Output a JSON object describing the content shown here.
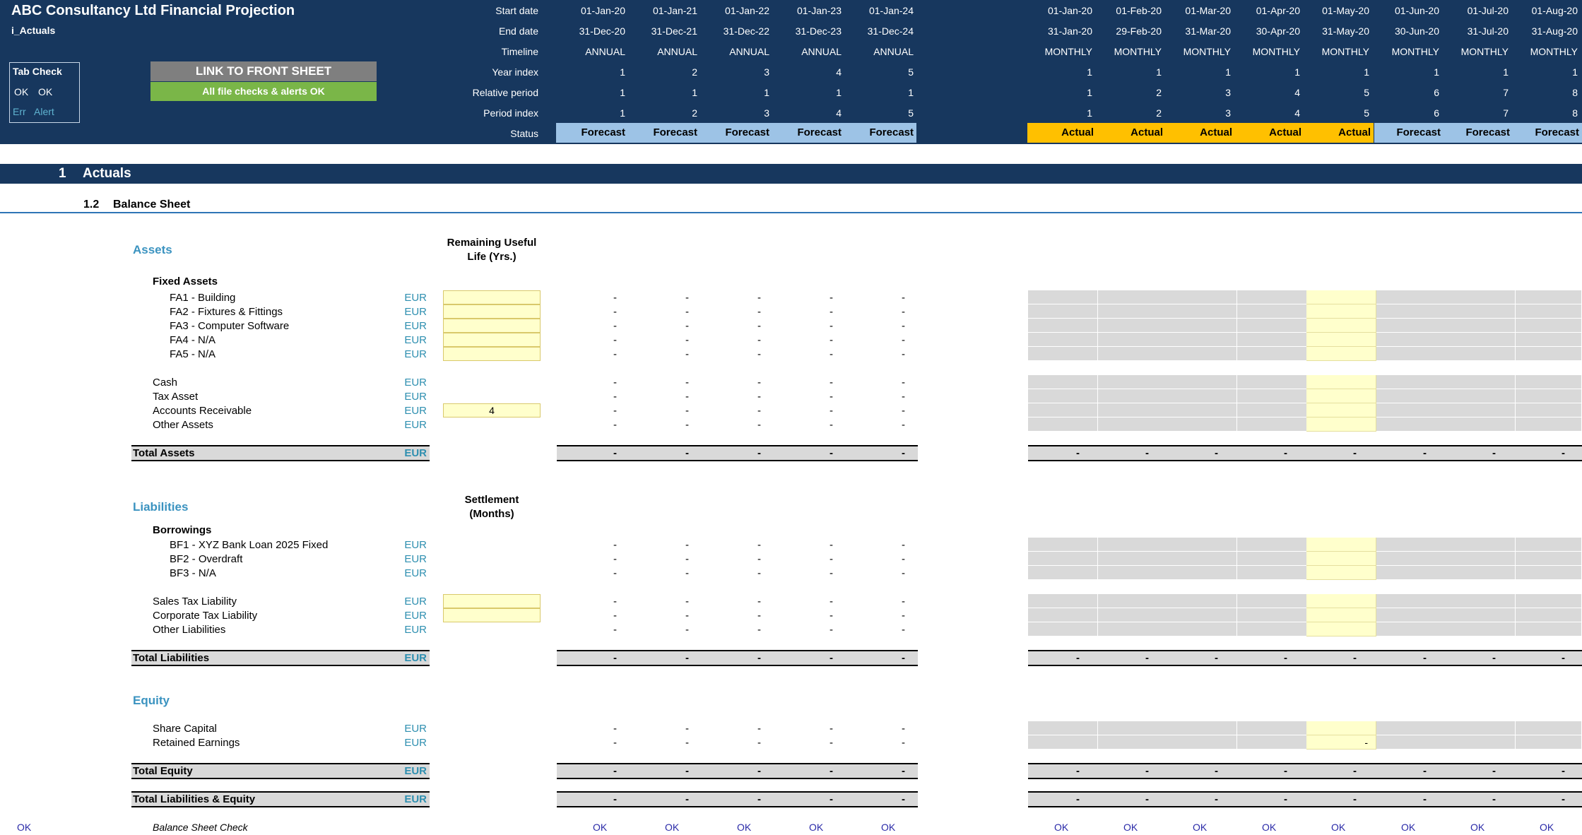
{
  "header": {
    "title": "ABC Consultancy Ltd Financial Projection",
    "sheet": "i_Actuals",
    "row_labels": [
      "Start date",
      "End date",
      "Timeline",
      "Year index",
      "Relative period",
      "Period index",
      "Status"
    ],
    "annual": {
      "start": [
        "01-Jan-20",
        "01-Jan-21",
        "01-Jan-22",
        "01-Jan-23",
        "01-Jan-24"
      ],
      "end": [
        "31-Dec-20",
        "31-Dec-21",
        "31-Dec-22",
        "31-Dec-23",
        "31-Dec-24"
      ],
      "timeline": [
        "ANNUAL",
        "ANNUAL",
        "ANNUAL",
        "ANNUAL",
        "ANNUAL"
      ],
      "year_index": [
        "1",
        "2",
        "3",
        "4",
        "5"
      ],
      "relative": [
        "1",
        "1",
        "1",
        "1",
        "1"
      ],
      "period": [
        "1",
        "2",
        "3",
        "4",
        "5"
      ],
      "status": [
        "Forecast",
        "Forecast",
        "Forecast",
        "Forecast",
        "Forecast"
      ]
    },
    "monthly": {
      "start": [
        "01-Jan-20",
        "01-Feb-20",
        "01-Mar-20",
        "01-Apr-20",
        "01-May-20",
        "01-Jun-20",
        "01-Jul-20",
        "01-Aug-20"
      ],
      "end": [
        "31-Jan-20",
        "29-Feb-20",
        "31-Mar-20",
        "30-Apr-20",
        "31-May-20",
        "30-Jun-20",
        "31-Jul-20",
        "31-Aug-20"
      ],
      "timeline": [
        "MONTHLY",
        "MONTHLY",
        "MONTHLY",
        "MONTHLY",
        "MONTHLY",
        "MONTHLY",
        "MONTHLY",
        "MONTHLY"
      ],
      "year_index": [
        "1",
        "1",
        "1",
        "1",
        "1",
        "1",
        "1",
        "1"
      ],
      "relative": [
        "1",
        "2",
        "3",
        "4",
        "5",
        "6",
        "7",
        "8"
      ],
      "period": [
        "1",
        "2",
        "3",
        "4",
        "5",
        "6",
        "7",
        "8"
      ],
      "status": [
        "Actual",
        "Actual",
        "Actual",
        "Actual",
        "Actual",
        "Forecast",
        "Forecast",
        "Forecast"
      ]
    }
  },
  "tab_check": {
    "title": "Tab Check",
    "ok1": "OK",
    "ok2": "OK",
    "err": "Err",
    "alert": "Alert"
  },
  "buttons": {
    "link_front": "LINK TO FRONT SHEET",
    "checks_ok": "All file checks & alerts OK"
  },
  "section": {
    "num": "1",
    "name": "Actuals",
    "sub_num": "1.2",
    "sub_name": "Balance Sheet"
  },
  "assets": {
    "heading": "Assets",
    "column_header": [
      "Remaining Useful",
      "Life (Yrs.)"
    ],
    "fixed_heading": "Fixed Assets",
    "fixed": [
      "FA1 - Building",
      "FA2 - Fixtures & Fittings",
      "FA3 - Computer Software",
      "FA4 - N/A",
      "FA5 - N/A"
    ],
    "other": [
      "Cash",
      "Tax Asset",
      "Accounts Receivable",
      "Other Assets"
    ],
    "ar_value": "4",
    "total": "Total Assets"
  },
  "liabilities": {
    "heading": "Liabilities",
    "column_header": [
      "Settlement",
      "(Months)"
    ],
    "borrow_heading": "Borrowings",
    "borrow": [
      "BF1 - XYZ Bank Loan 2025 Fixed",
      "BF2 - Overdraft",
      "BF3 - N/A"
    ],
    "other": [
      "Sales Tax Liability",
      "Corporate Tax Liability",
      "Other Liabilities"
    ],
    "total": "Total Liabilities"
  },
  "equity": {
    "heading": "Equity",
    "items": [
      "Share Capital",
      "Retained Earnings"
    ],
    "total": "Total Equity",
    "grand_total": "Total Liabilities & Equity"
  },
  "check": {
    "left_ok": "OK",
    "label": "Balance Sheet Check",
    "ok": "OK"
  },
  "unit": "EUR",
  "dash": "-"
}
